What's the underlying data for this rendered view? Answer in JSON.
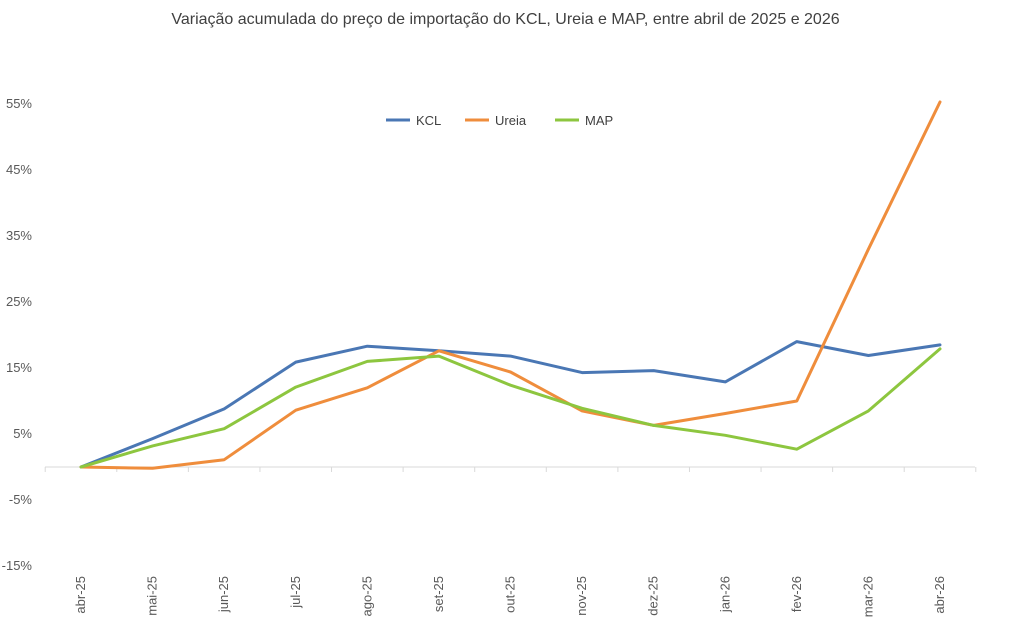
{
  "chart_data": {
    "type": "line",
    "title": "Variação acumulada do preço de importação do KCL, Ureia e MAP, entre abril de 2025 e 2026",
    "xlabel": "",
    "ylabel": "",
    "categories": [
      "abr-25",
      "mai-25",
      "jun-25",
      "jul-25",
      "ago-25",
      "set-25",
      "out-25",
      "nov-25",
      "dez-25",
      "jan-26",
      "fev-26",
      "mar-26",
      "abr-26"
    ],
    "ylim": [
      -15,
      55
    ],
    "yticks": [
      -15,
      -5,
      5,
      15,
      25,
      35,
      45,
      55
    ],
    "ytick_labels": [
      "-15%",
      "-5%",
      "5%",
      "15%",
      "25%",
      "35%",
      "45%",
      "55%"
    ],
    "grid": false,
    "legend_position": "top-center",
    "series": [
      {
        "name": "KCL",
        "color": "#4a77b4",
        "values": [
          0,
          4.3,
          8.8,
          15.9,
          18.3,
          17.6,
          16.8,
          14.3,
          14.6,
          12.9,
          19.0,
          16.9,
          18.5
        ]
      },
      {
        "name": "Ureia",
        "color": "#ef8d3c",
        "values": [
          0,
          -0.2,
          1.1,
          8.6,
          12.0,
          17.6,
          14.4,
          8.5,
          6.3,
          8.1,
          10.0,
          33.0,
          55.3
        ]
      },
      {
        "name": "MAP",
        "color": "#8dc63f",
        "values": [
          0,
          3.2,
          5.8,
          12.1,
          16.0,
          16.8,
          12.4,
          8.9,
          6.3,
          4.8,
          2.7,
          8.5,
          17.9
        ]
      }
    ]
  }
}
